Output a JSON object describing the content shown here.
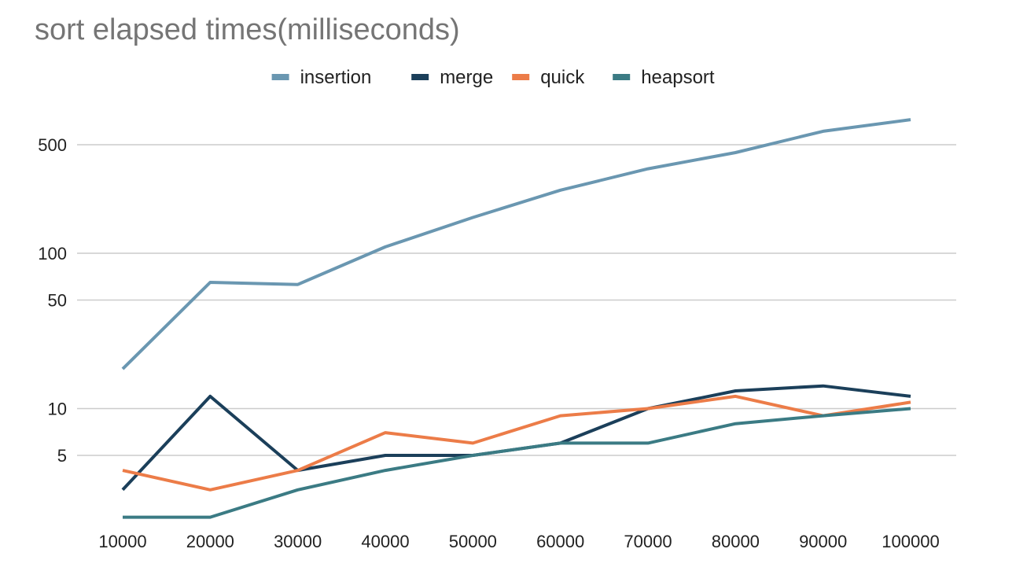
{
  "chart_data": {
    "type": "line",
    "title": "sort elapsed times(milliseconds)",
    "xlabel": "",
    "ylabel": "",
    "y_scale": "log",
    "ylim": [
      2,
      800
    ],
    "legend_position": "top-center",
    "grid": true,
    "categories": [
      "10000",
      "20000",
      "30000",
      "40000",
      "50000",
      "60000",
      "70000",
      "80000",
      "90000",
      "100000"
    ],
    "y_ticks": [
      5,
      10,
      50,
      100,
      500
    ],
    "y_tick_labels": [
      "5",
      "10",
      "50",
      "100",
      "500"
    ],
    "series": [
      {
        "name": "insertion",
        "color": "#6a97b1",
        "values": [
          18,
          65,
          63,
          110,
          170,
          255,
          350,
          445,
          610,
          725
        ]
      },
      {
        "name": "merge",
        "color": "#1b3f5a",
        "values": [
          3,
          12,
          4,
          5,
          5,
          6,
          10,
          13,
          14,
          12
        ]
      },
      {
        "name": "quick",
        "color": "#ec7c48",
        "values": [
          4,
          3,
          4,
          7,
          6,
          9,
          10,
          12,
          9,
          11
        ]
      },
      {
        "name": "heapsort",
        "color": "#3b7b84",
        "values": [
          2,
          2,
          3,
          4,
          5,
          6,
          6,
          8,
          9,
          10
        ]
      }
    ]
  }
}
